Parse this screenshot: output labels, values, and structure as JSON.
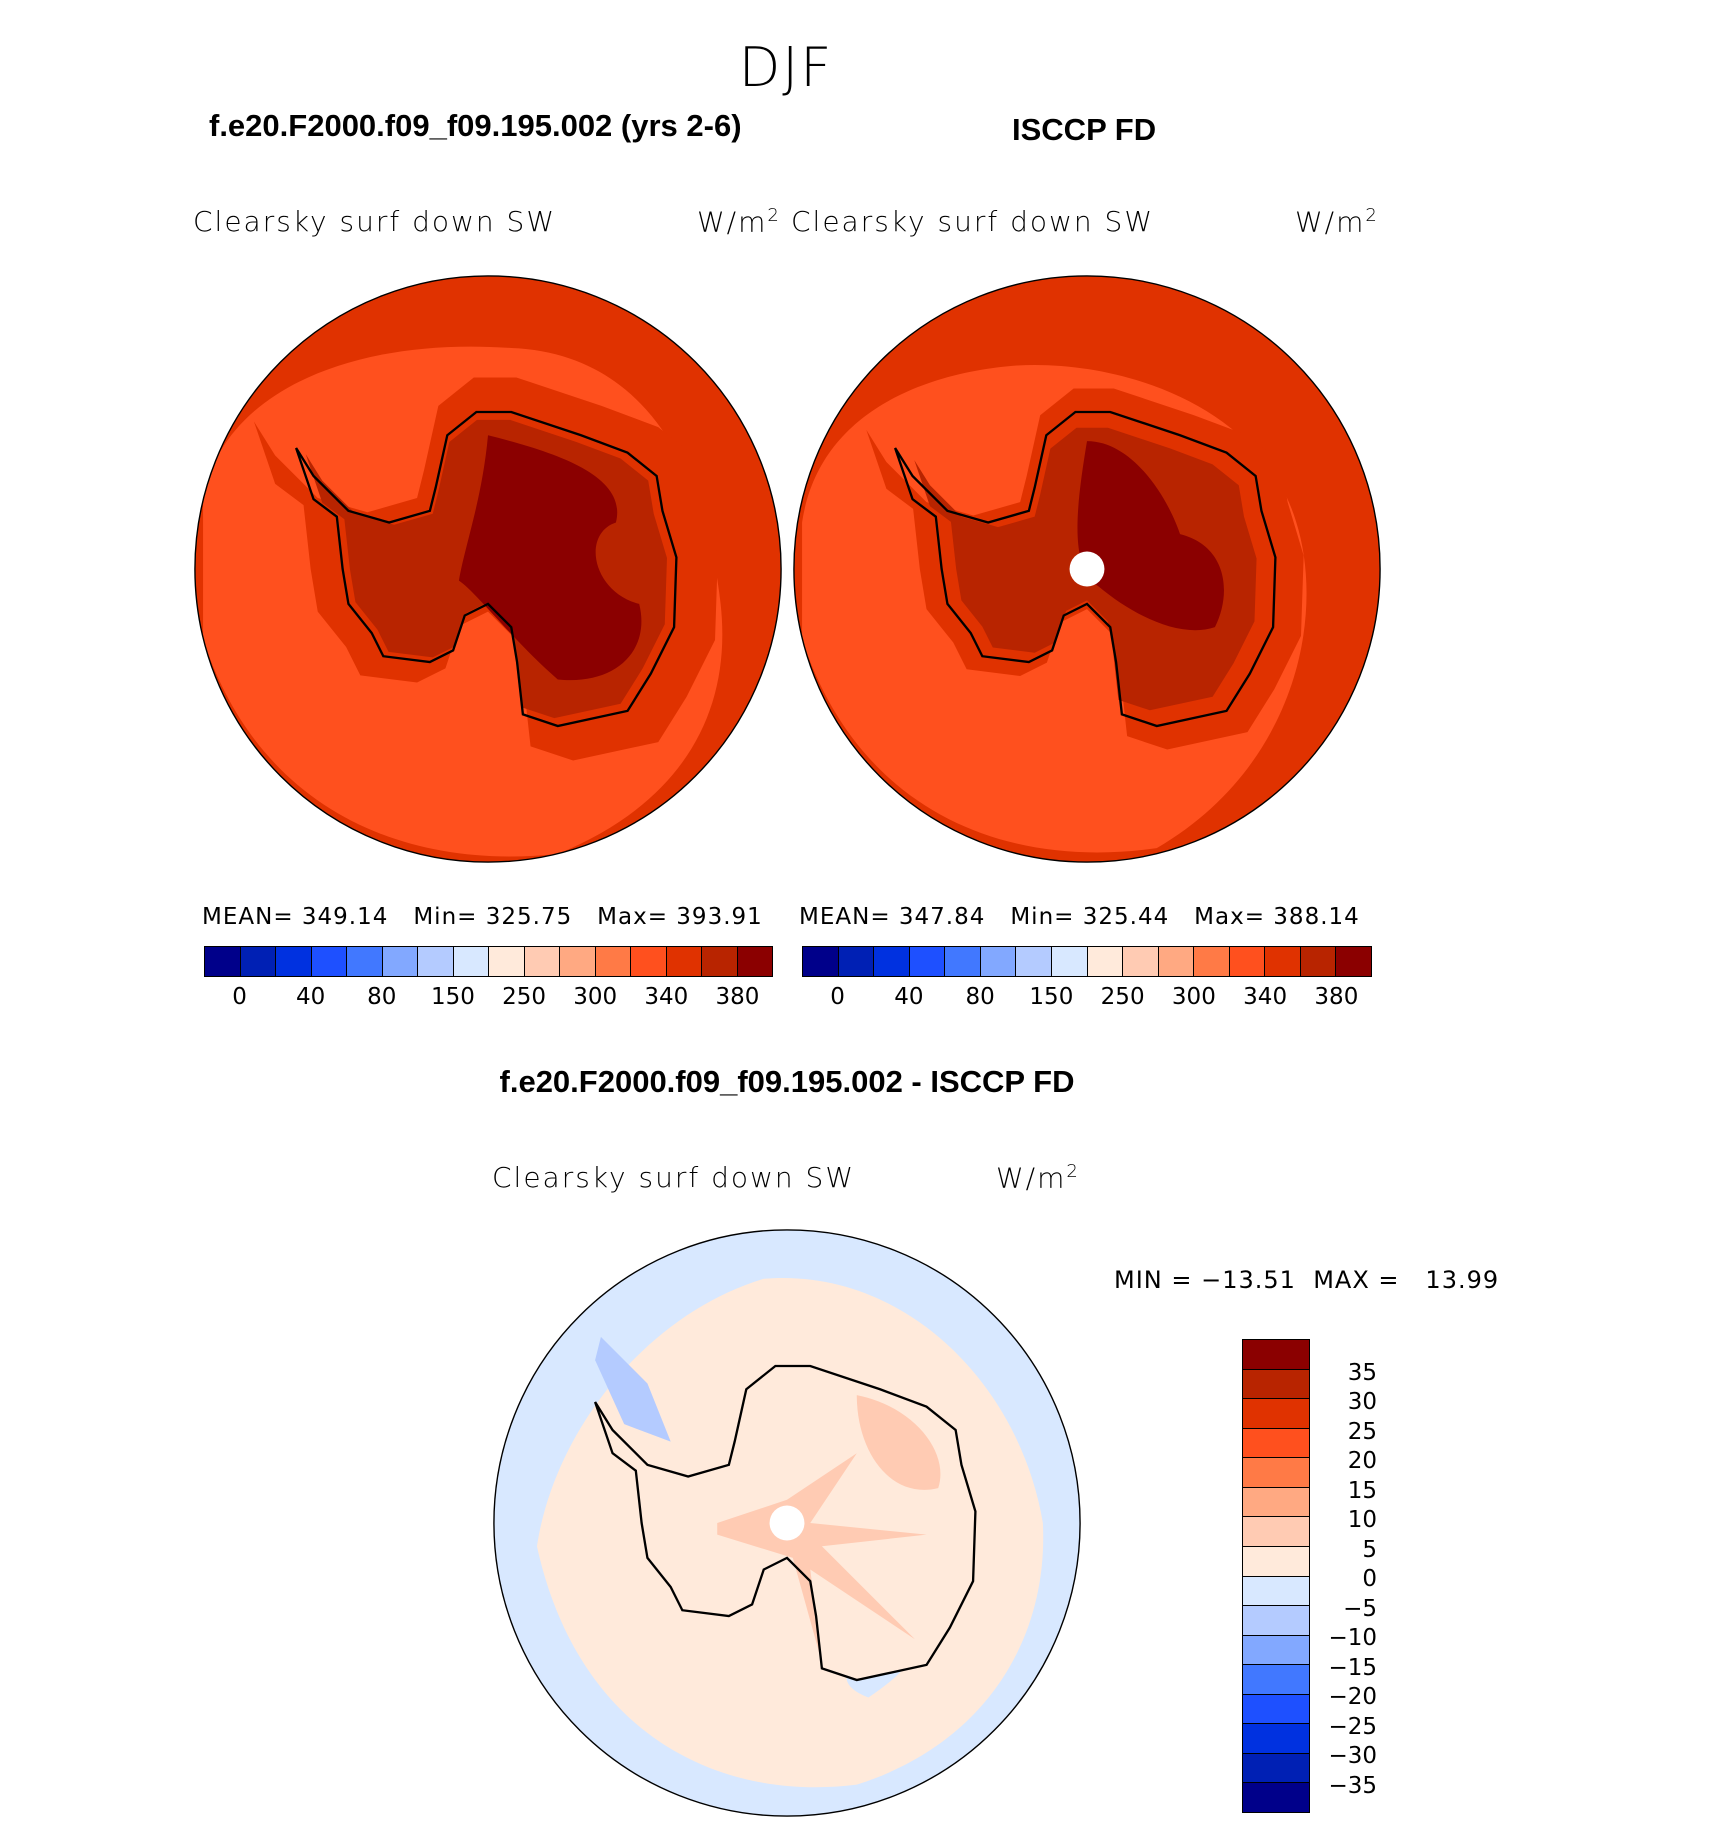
{
  "season": "DJF",
  "panels": {
    "model_title": "f.e20.F2000.f09_f09.195.002 (yrs 2-6)",
    "obs_title": "ISCCP FD",
    "diff_title": "f.e20.F2000.f09_f09.195.002 - ISCCP FD",
    "variable": "Clearsky surf down SW",
    "units": "W/m",
    "units_exp": "2"
  },
  "chart_data": [
    {
      "type": "heatmap",
      "projection": "south polar stereographic",
      "title": "f.e20.F2000.f09_f09.195.002 (yrs 2-6)",
      "variable": "Clearsky surf down SW",
      "units": "W/m2",
      "stats": {
        "mean_label": "MEAN=",
        "mean": "349.14",
        "min_label": "Min=",
        "min": "325.75",
        "max_label": "Max=",
        "max": "393.91"
      }
    },
    {
      "type": "heatmap",
      "projection": "south polar stereographic",
      "title": "ISCCP FD",
      "variable": "Clearsky surf down SW",
      "units": "W/m2",
      "stats": {
        "mean_label": "MEAN=",
        "mean": "347.84",
        "min_label": "Min=",
        "min": "325.44",
        "max_label": "Max=",
        "max": "388.14"
      }
    },
    {
      "type": "heatmap",
      "projection": "south polar stereographic",
      "title": "f.e20.F2000.f09_f09.195.002 - ISCCP FD",
      "variable": "Clearsky surf down SW",
      "units": "W/m2",
      "stats": {
        "min_label": "MIN =",
        "min": "−13.51",
        "max_label": "MAX =",
        "max": "13.99"
      }
    }
  ],
  "colorbar_levels": [
    "0",
    "40",
    "80",
    "150",
    "250",
    "300",
    "340",
    "380"
  ],
  "diff_levels": [
    "35",
    "30",
    "25",
    "20",
    "15",
    "10",
    "5",
    "0",
    "−5",
    "−10",
    "−15",
    "−20",
    "−25",
    "−30",
    "−35"
  ],
  "colors": [
    "#00008a",
    "#0020b4",
    "#0031e0",
    "#1e50ff",
    "#4178ff",
    "#82a8ff",
    "#b4cbff",
    "#d8e8ff",
    "#ffeadb",
    "#ffcbb3",
    "#ffa982",
    "#ff7a46",
    "#ff501e",
    "#e03200",
    "#b82400",
    "#8b0000"
  ]
}
